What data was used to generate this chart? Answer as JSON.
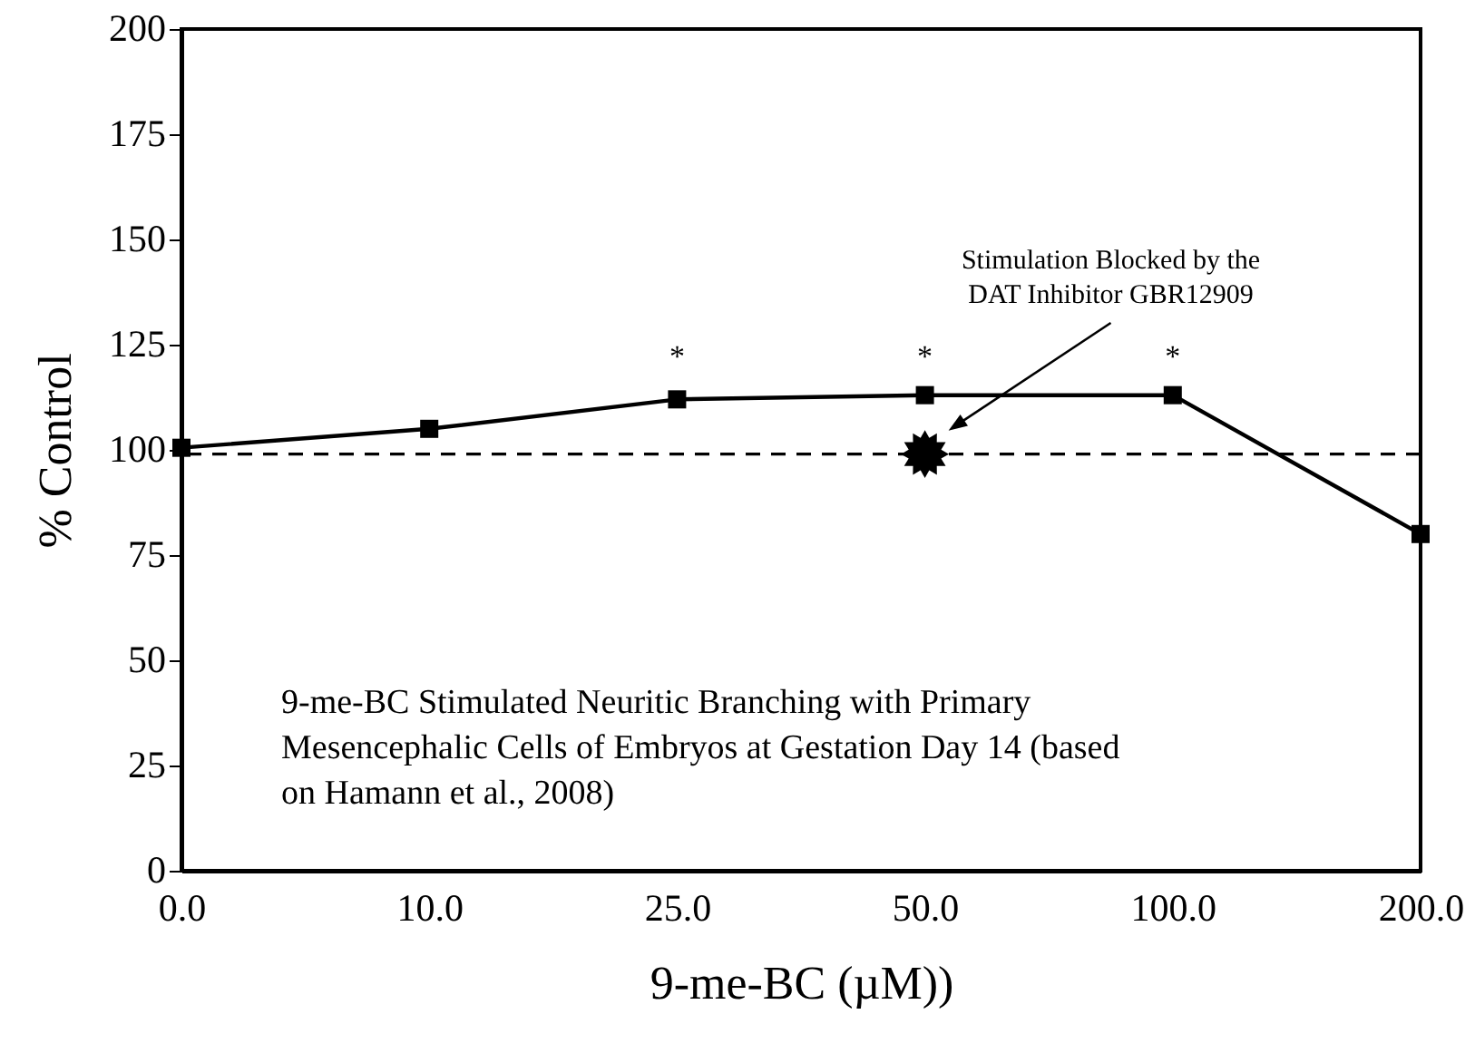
{
  "chart_data": {
    "type": "line",
    "xlabel": "9-me-BC (µM))",
    "ylabel": "% Control",
    "categories": [
      "0.0",
      "10.0",
      "25.0",
      "50.0",
      "100.0",
      "200.0"
    ],
    "series": [
      {
        "color": "#000000",
        "marker": "square",
        "line_style": "solid",
        "values": [
          100.5,
          105,
          112,
          113,
          113,
          80
        ]
      },
      {
        "type": "scatter",
        "color": "#000000",
        "marker": "star",
        "x": [
          "50.0"
        ],
        "values": [
          99
        ]
      }
    ],
    "ylim": [
      0,
      200
    ],
    "yticks": [
      0,
      25,
      50,
      75,
      100,
      125,
      150,
      175,
      200
    ],
    "grid": false,
    "ref_lines": [
      {
        "axis": "y",
        "value": 99,
        "line_style": "dashed",
        "color": "#000000"
      }
    ],
    "annotations": [
      "*",
      "*",
      "*",
      "Stimulation Blocked by the DAT Inhibitor GBR12909",
      "9-me-BC Stimulated Neuritic Branching with Primary Mesencephalic Cells of Embryos at Gestation Day 14 (based on Hamann et al., 2008)"
    ]
  }
}
